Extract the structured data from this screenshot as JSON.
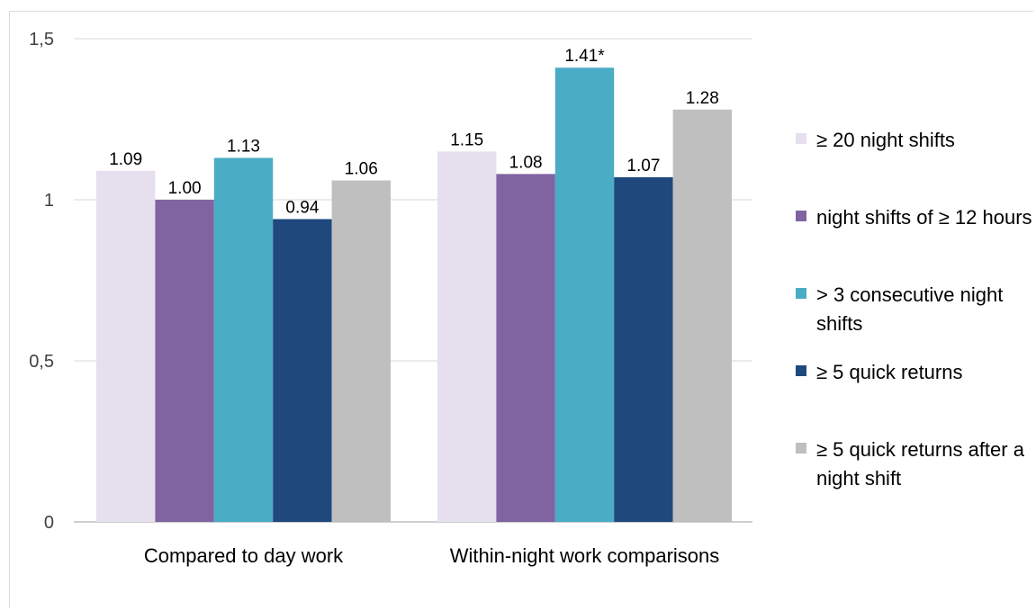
{
  "chart_data": {
    "type": "bar",
    "categories": [
      "Compared to day work",
      "Within-night work comparisons"
    ],
    "series": [
      {
        "name": "≥ 20 night shifts",
        "color": "#e6e0ee",
        "values": [
          1.09,
          1.15
        ],
        "labels": [
          "1.09",
          "1.15"
        ]
      },
      {
        "name": "night shifts of ≥ 12 hours",
        "color": "#8064a2",
        "values": [
          1.0,
          1.08
        ],
        "labels": [
          "1.00",
          "1.08"
        ]
      },
      {
        "name": "> 3 consecutive night shifts",
        "color": "#4bacc6",
        "values": [
          1.13,
          1.41
        ],
        "labels": [
          "1.13",
          "1.41*"
        ]
      },
      {
        "name": "≥ 5 quick returns",
        "color": "#1f497d",
        "values": [
          0.94,
          1.07
        ],
        "labels": [
          "0.94",
          "1.07"
        ]
      },
      {
        "name": "≥ 5 quick returns after a night shift",
        "color": "#bfbfbf",
        "values": [
          1.06,
          1.28
        ],
        "labels": [
          "1.06",
          "1.28"
        ]
      }
    ],
    "ylim": [
      0,
      1.5
    ],
    "yticks": [
      0,
      0.5,
      1,
      1.5
    ],
    "ytick_labels": [
      "0",
      "0,5",
      "1",
      "1,5"
    ],
    "grid": true,
    "legend_position": "right"
  }
}
